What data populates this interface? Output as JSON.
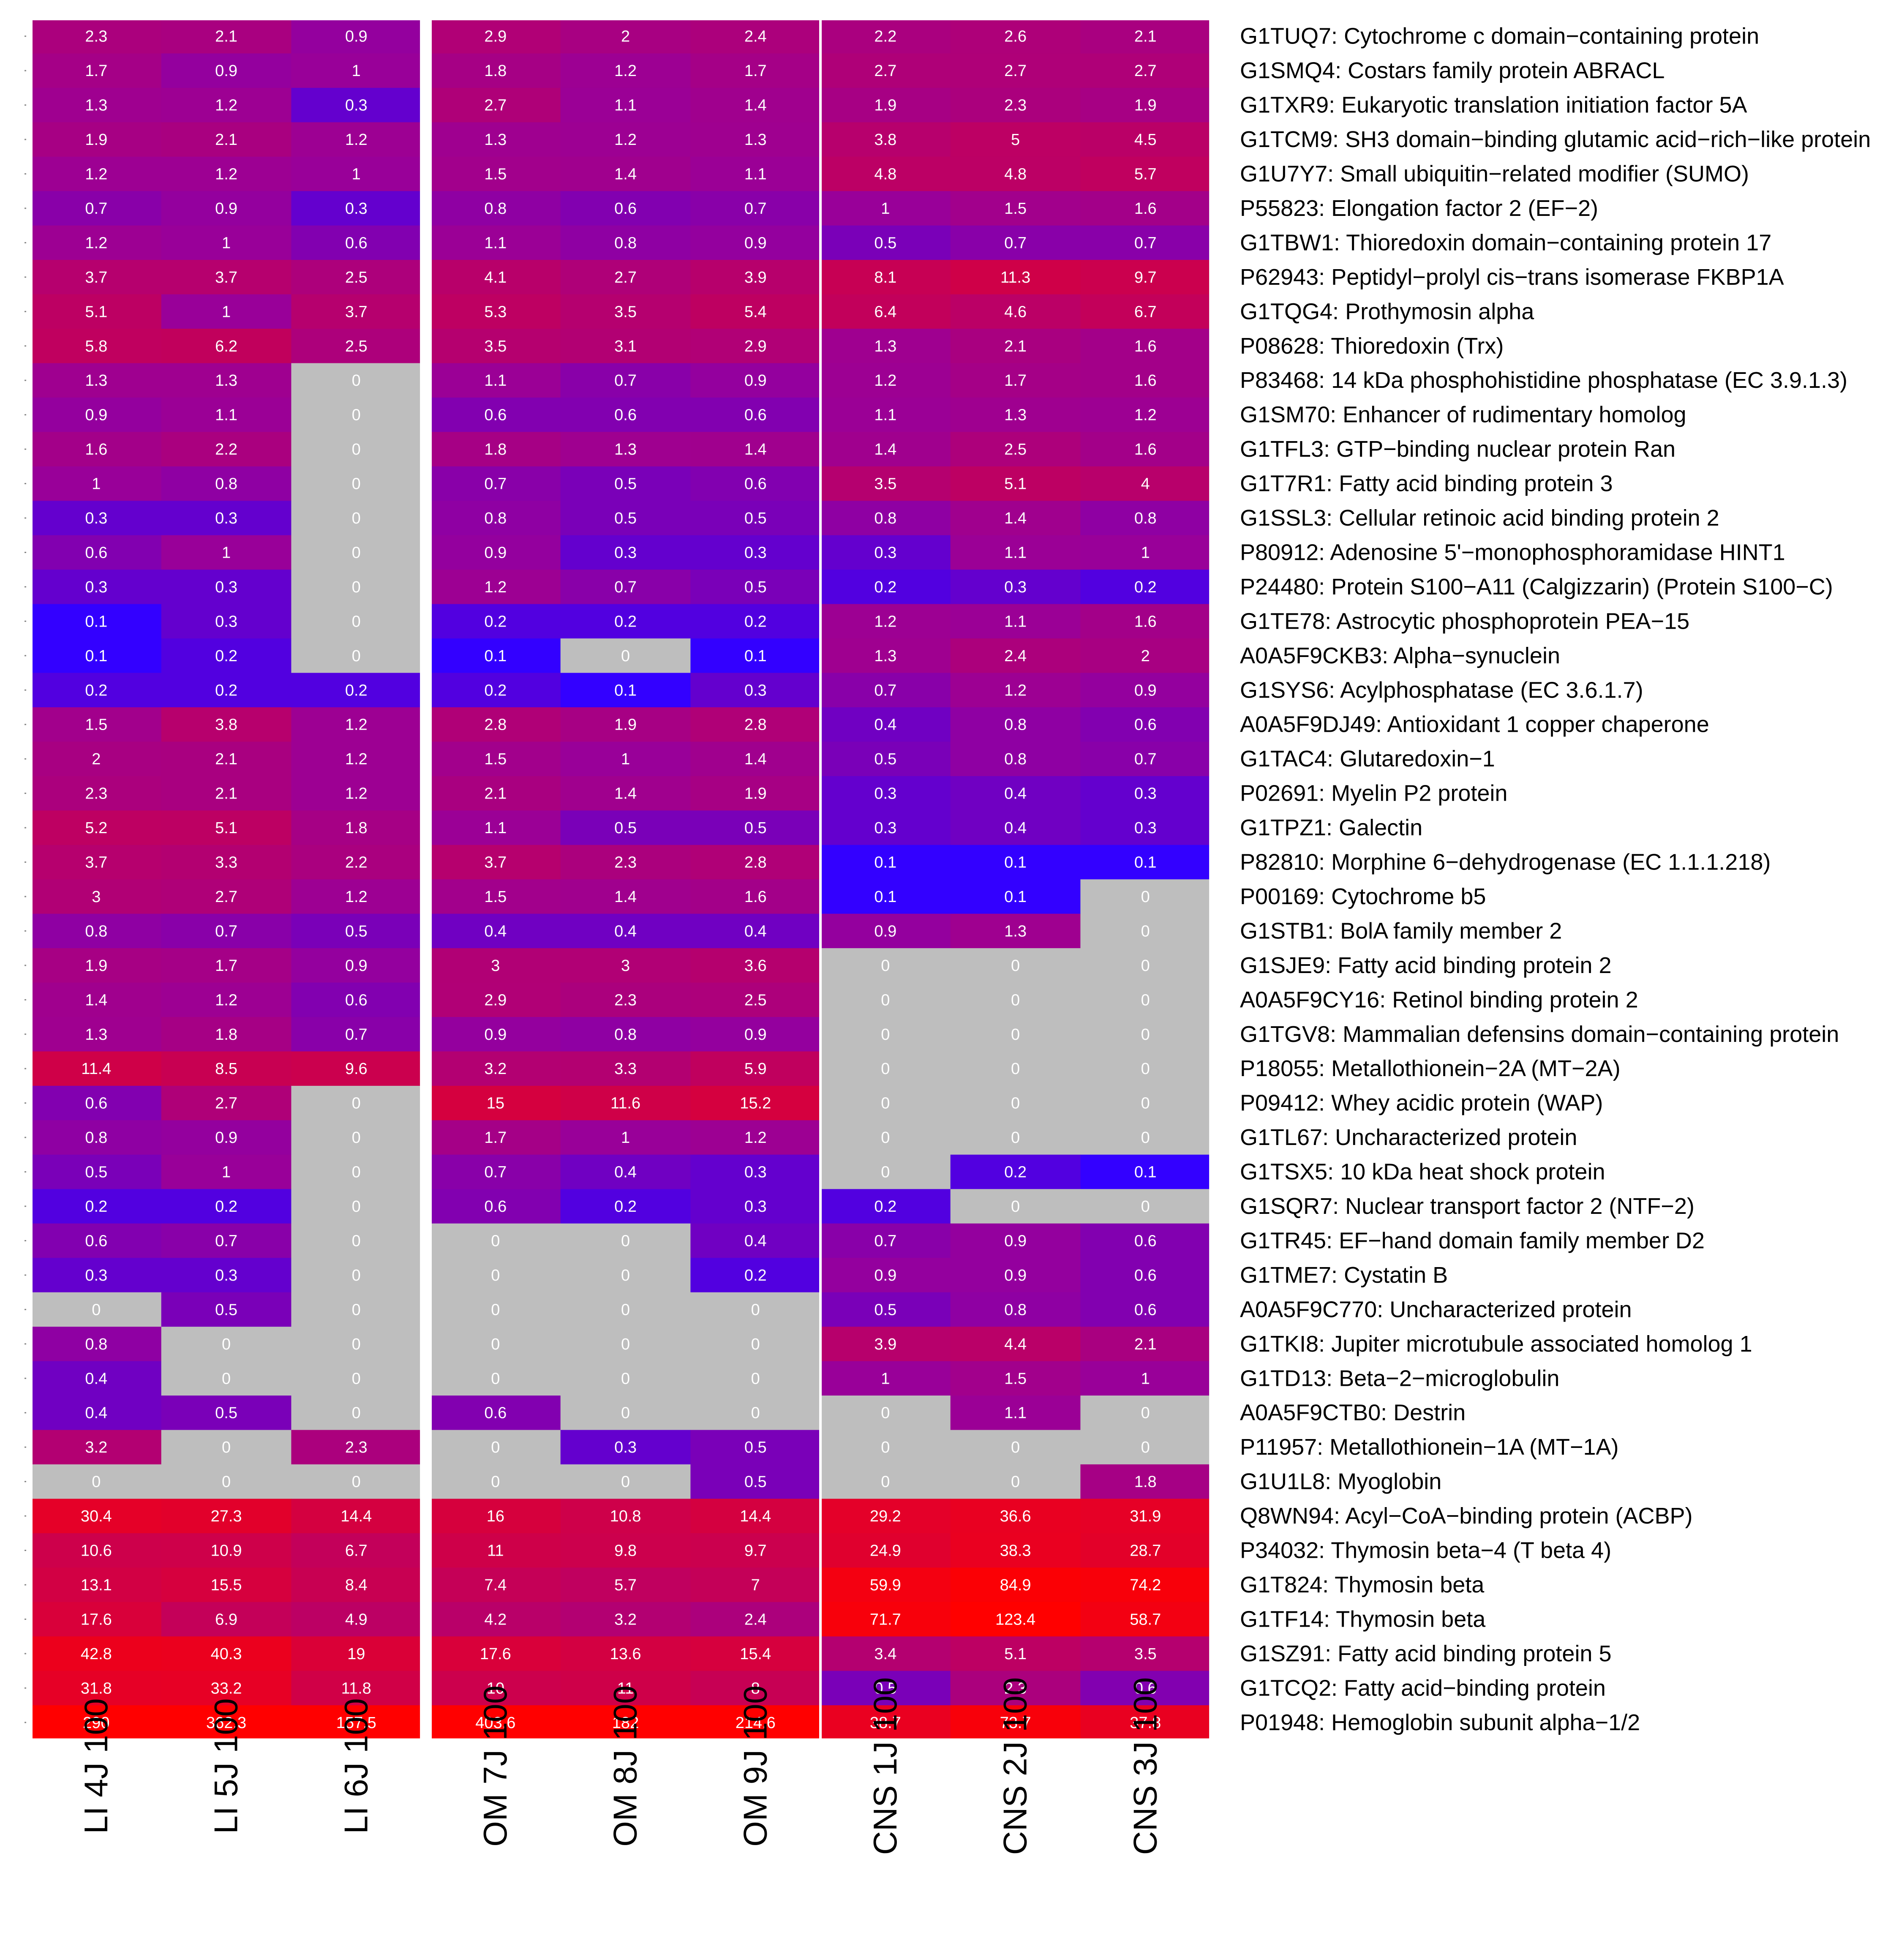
{
  "chart_data": {
    "type": "heatmap",
    "columns": [
      "LI 4J 100",
      "LI 5J 100",
      "LI 6J 100",
      "OM 7J 100",
      "OM 8J 100",
      "OM 9J 100",
      "CNS 1J 100",
      "CNS 2J 100",
      "CNS 3J 100"
    ],
    "groups": [
      {
        "name": "LI",
        "columns": [
          0,
          1,
          2
        ]
      },
      {
        "name": "OM",
        "columns": [
          3,
          4,
          5
        ]
      },
      {
        "name": "CNS",
        "columns": [
          6,
          7,
          8
        ]
      }
    ],
    "color_scale": {
      "zero": "#bebebe",
      "low": "#3300ff",
      "mid": "#990099",
      "high": "#ff0000"
    },
    "rows": [
      {
        "label": "G1TUQ7: Cytochrome c domain−containing protein",
        "values": [
          "2.3",
          "2.1",
          "0.9",
          "2.9",
          "2",
          "2.4",
          "2.2",
          "2.6",
          "2.1"
        ]
      },
      {
        "label": "G1SMQ4: Costars family protein ABRACL",
        "values": [
          "1.7",
          "0.9",
          "1",
          "1.8",
          "1.2",
          "1.7",
          "2.7",
          "2.7",
          "2.7"
        ]
      },
      {
        "label": "G1TXR9: Eukaryotic translation initiation factor 5A",
        "values": [
          "1.3",
          "1.2",
          "0.3",
          "2.7",
          "1.1",
          "1.4",
          "1.9",
          "2.3",
          "1.9"
        ]
      },
      {
        "label": "G1TCM9: SH3 domain−binding glutamic acid−rich−like protein",
        "values": [
          "1.9",
          "2.1",
          "1.2",
          "1.3",
          "1.2",
          "1.3",
          "3.8",
          "5",
          "4.5"
        ]
      },
      {
        "label": "G1U7Y7: Small ubiquitin−related modifier (SUMO)",
        "values": [
          "1.2",
          "1.2",
          "1",
          "1.5",
          "1.4",
          "1.1",
          "4.8",
          "4.8",
          "5.7"
        ]
      },
      {
        "label": "P55823: Elongation factor 2 (EF−2)",
        "values": [
          "0.7",
          "0.9",
          "0.3",
          "0.8",
          "0.6",
          "0.7",
          "1",
          "1.5",
          "1.6"
        ]
      },
      {
        "label": "G1TBW1: Thioredoxin domain−containing protein 17",
        "values": [
          "1.2",
          "1",
          "0.6",
          "1.1",
          "0.8",
          "0.9",
          "0.5",
          "0.7",
          "0.7"
        ]
      },
      {
        "label": "P62943: Peptidyl−prolyl cis−trans isomerase FKBP1A",
        "values": [
          "3.7",
          "3.7",
          "2.5",
          "4.1",
          "2.7",
          "3.9",
          "8.1",
          "11.3",
          "9.7"
        ]
      },
      {
        "label": "G1TQG4: Prothymosin alpha",
        "values": [
          "5.1",
          "1",
          "3.7",
          "5.3",
          "3.5",
          "5.4",
          "6.4",
          "4.6",
          "6.7"
        ]
      },
      {
        "label": "P08628: Thioredoxin (Trx)",
        "values": [
          "5.8",
          "6.2",
          "2.5",
          "3.5",
          "3.1",
          "2.9",
          "1.3",
          "2.1",
          "1.6"
        ]
      },
      {
        "label": "P83468: 14 kDa phosphohistidine phosphatase (EC 3.9.1.3)",
        "values": [
          "1.3",
          "1.3",
          "0",
          "1.1",
          "0.7",
          "0.9",
          "1.2",
          "1.7",
          "1.6"
        ]
      },
      {
        "label": "G1SM70: Enhancer of rudimentary homolog",
        "values": [
          "0.9",
          "1.1",
          "0",
          "0.6",
          "0.6",
          "0.6",
          "1.1",
          "1.3",
          "1.2"
        ]
      },
      {
        "label": "G1TFL3: GTP−binding nuclear protein Ran",
        "values": [
          "1.6",
          "2.2",
          "0",
          "1.8",
          "1.3",
          "1.4",
          "1.4",
          "2.5",
          "1.6"
        ]
      },
      {
        "label": "G1T7R1: Fatty acid binding protein 3",
        "values": [
          "1",
          "0.8",
          "0",
          "0.7",
          "0.5",
          "0.6",
          "3.5",
          "5.1",
          "4"
        ]
      },
      {
        "label": "G1SSL3: Cellular retinoic acid binding protein 2",
        "values": [
          "0.3",
          "0.3",
          "0",
          "0.8",
          "0.5",
          "0.5",
          "0.8",
          "1.4",
          "0.8"
        ]
      },
      {
        "label": "P80912: Adenosine 5'−monophosphoramidase HINT1",
        "values": [
          "0.6",
          "1",
          "0",
          "0.9",
          "0.3",
          "0.3",
          "0.3",
          "1.1",
          "1"
        ]
      },
      {
        "label": "P24480: Protein S100−A11 (Calgizzarin) (Protein S100−C)",
        "values": [
          "0.3",
          "0.3",
          "0",
          "1.2",
          "0.7",
          "0.5",
          "0.2",
          "0.3",
          "0.2"
        ]
      },
      {
        "label": "G1TE78: Astrocytic phosphoprotein PEA−15",
        "values": [
          "0.1",
          "0.3",
          "0",
          "0.2",
          "0.2",
          "0.2",
          "1.2",
          "1.1",
          "1.6"
        ]
      },
      {
        "label": "A0A5F9CKB3: Alpha−synuclein",
        "values": [
          "0.1",
          "0.2",
          "0",
          "0.1",
          "0",
          "0.1",
          "1.3",
          "2.4",
          "2"
        ]
      },
      {
        "label": "G1SYS6: Acylphosphatase (EC 3.6.1.7)",
        "values": [
          "0.2",
          "0.2",
          "0.2",
          "0.2",
          "0.1",
          "0.3",
          "0.7",
          "1.2",
          "0.9"
        ]
      },
      {
        "label": "A0A5F9DJ49: Antioxidant 1 copper chaperone",
        "values": [
          "1.5",
          "3.8",
          "1.2",
          "2.8",
          "1.9",
          "2.8",
          "0.4",
          "0.8",
          "0.6"
        ]
      },
      {
        "label": "G1TAC4: Glutaredoxin−1",
        "values": [
          "2",
          "2.1",
          "1.2",
          "1.5",
          "1",
          "1.4",
          "0.5",
          "0.8",
          "0.7"
        ]
      },
      {
        "label": "P02691: Myelin P2 protein",
        "values": [
          "2.3",
          "2.1",
          "1.2",
          "2.1",
          "1.4",
          "1.9",
          "0.3",
          "0.4",
          "0.3"
        ]
      },
      {
        "label": "G1TPZ1: Galectin",
        "values": [
          "5.2",
          "5.1",
          "1.8",
          "1.1",
          "0.5",
          "0.5",
          "0.3",
          "0.4",
          "0.3"
        ]
      },
      {
        "label": "P82810: Morphine 6−dehydrogenase (EC 1.1.1.218)",
        "values": [
          "3.7",
          "3.3",
          "2.2",
          "3.7",
          "2.3",
          "2.8",
          "0.1",
          "0.1",
          "0.1"
        ]
      },
      {
        "label": "P00169: Cytochrome b5",
        "values": [
          "3",
          "2.7",
          "1.2",
          "1.5",
          "1.4",
          "1.6",
          "0.1",
          "0.1",
          "0"
        ]
      },
      {
        "label": "G1STB1: BolA family member 2",
        "values": [
          "0.8",
          "0.7",
          "0.5",
          "0.4",
          "0.4",
          "0.4",
          "0.9",
          "1.3",
          "0"
        ]
      },
      {
        "label": "G1SJE9: Fatty acid binding protein 2",
        "values": [
          "1.9",
          "1.7",
          "0.9",
          "3",
          "3",
          "3.6",
          "0",
          "0",
          "0"
        ]
      },
      {
        "label": "A0A5F9CY16: Retinol binding protein 2",
        "values": [
          "1.4",
          "1.2",
          "0.6",
          "2.9",
          "2.3",
          "2.5",
          "0",
          "0",
          "0"
        ]
      },
      {
        "label": "G1TGV8: Mammalian defensins domain−containing protein",
        "values": [
          "1.3",
          "1.8",
          "0.7",
          "0.9",
          "0.8",
          "0.9",
          "0",
          "0",
          "0"
        ]
      },
      {
        "label": "P18055: Metallothionein−2A (MT−2A)",
        "values": [
          "11.4",
          "8.5",
          "9.6",
          "3.2",
          "3.3",
          "5.9",
          "0",
          "0",
          "0"
        ]
      },
      {
        "label": "P09412: Whey acidic protein (WAP)",
        "values": [
          "0.6",
          "2.7",
          "0",
          "15",
          "11.6",
          "15.2",
          "0",
          "0",
          "0"
        ]
      },
      {
        "label": "G1TL67: Uncharacterized protein",
        "values": [
          "0.8",
          "0.9",
          "0",
          "1.7",
          "1",
          "1.2",
          "0",
          "0",
          "0"
        ]
      },
      {
        "label": "G1TSX5: 10 kDa heat shock protein",
        "values": [
          "0.5",
          "1",
          "0",
          "0.7",
          "0.4",
          "0.3",
          "0",
          "0.2",
          "0.1"
        ]
      },
      {
        "label": "G1SQR7: Nuclear transport factor 2 (NTF−2)",
        "values": [
          "0.2",
          "0.2",
          "0",
          "0.6",
          "0.2",
          "0.3",
          "0.2",
          "0",
          "0"
        ]
      },
      {
        "label": "G1TR45: EF−hand domain family member D2",
        "values": [
          "0.6",
          "0.7",
          "0",
          "0",
          "0",
          "0.4",
          "0.7",
          "0.9",
          "0.6"
        ]
      },
      {
        "label": "G1TME7: Cystatin B",
        "values": [
          "0.3",
          "0.3",
          "0",
          "0",
          "0",
          "0.2",
          "0.9",
          "0.9",
          "0.6"
        ]
      },
      {
        "label": "A0A5F9C770: Uncharacterized protein",
        "values": [
          "0",
          "0.5",
          "0",
          "0",
          "0",
          "0",
          "0.5",
          "0.8",
          "0.6"
        ]
      },
      {
        "label": "G1TKI8: Jupiter microtubule associated homolog 1",
        "values": [
          "0.8",
          "0",
          "0",
          "0",
          "0",
          "0",
          "3.9",
          "4.4",
          "2.1"
        ]
      },
      {
        "label": "G1TD13: Beta−2−microglobulin",
        "values": [
          "0.4",
          "0",
          "0",
          "0",
          "0",
          "0",
          "1",
          "1.5",
          "1"
        ]
      },
      {
        "label": "A0A5F9CTB0: Destrin",
        "values": [
          "0.4",
          "0.5",
          "0",
          "0.6",
          "0",
          "0",
          "0",
          "1.1",
          "0"
        ]
      },
      {
        "label": "P11957: Metallothionein−1A (MT−1A)",
        "values": [
          "3.2",
          "0",
          "2.3",
          "0",
          "0.3",
          "0.5",
          "0",
          "0",
          "0"
        ]
      },
      {
        "label": "G1U1L8: Myoglobin",
        "values": [
          "0",
          "0",
          "0",
          "0",
          "0",
          "0.5",
          "0",
          "0",
          "1.8"
        ]
      },
      {
        "label": "Q8WN94: Acyl−CoA−binding protein (ACBP)",
        "values": [
          "30.4",
          "27.3",
          "14.4",
          "16",
          "10.8",
          "14.4",
          "29.2",
          "36.6",
          "31.9"
        ]
      },
      {
        "label": "P34032: Thymosin beta−4 (T beta 4)",
        "values": [
          "10.6",
          "10.9",
          "6.7",
          "11",
          "9.8",
          "9.7",
          "24.9",
          "38.3",
          "28.7"
        ]
      },
      {
        "label": "G1T824: Thymosin beta",
        "values": [
          "13.1",
          "15.5",
          "8.4",
          "7.4",
          "5.7",
          "7",
          "59.9",
          "84.9",
          "74.2"
        ]
      },
      {
        "label": "G1TF14: Thymosin beta",
        "values": [
          "17.6",
          "6.9",
          "4.9",
          "4.2",
          "3.2",
          "2.4",
          "71.7",
          "123.4",
          "58.7"
        ]
      },
      {
        "label": "G1SZ91: Fatty acid binding protein 5",
        "values": [
          "42.8",
          "40.3",
          "19",
          "17.6",
          "13.6",
          "15.4",
          "3.4",
          "5.1",
          "3.5"
        ]
      },
      {
        "label": "G1TCQ2: Fatty acid−binding protein",
        "values": [
          "31.8",
          "33.2",
          "11.8",
          "10",
          "11",
          "8",
          "0.5",
          "2.3",
          "0.6"
        ]
      },
      {
        "label": "P01948: Hemoglobin subunit alpha−1/2",
        "values": [
          "290",
          "362.3",
          "157.5",
          "403.6",
          "182",
          "214.6",
          "38.7",
          "73.7",
          "37.8"
        ]
      }
    ]
  }
}
